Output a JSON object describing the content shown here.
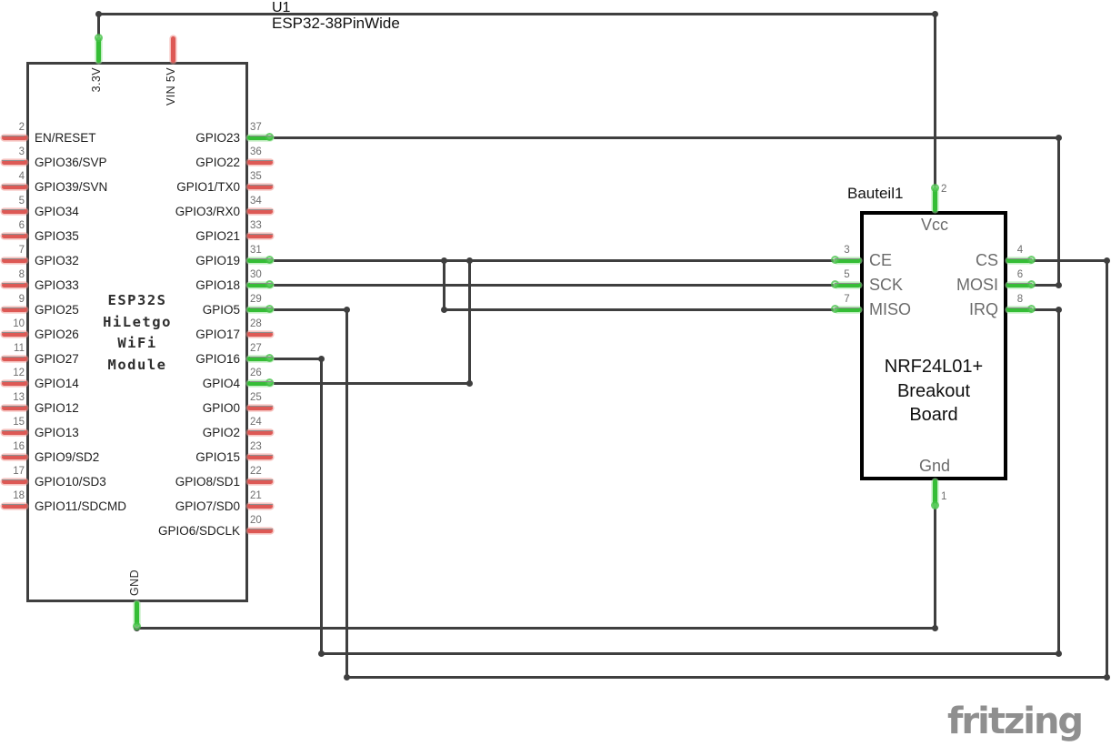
{
  "esp32": {
    "ref": "U1",
    "part": "ESP32-38PinWide",
    "center_lines": [
      "ESP32S",
      "HiLetgo",
      "WiFi",
      "Module"
    ],
    "top_pins": [
      {
        "label": "3.3V",
        "color": "green"
      },
      {
        "label": "VIN 5V",
        "color": "red"
      }
    ],
    "bottom_pins": [
      {
        "label": "GND",
        "color": "green"
      }
    ],
    "left_pins": [
      {
        "num": "2",
        "label": "EN/RESET",
        "color": "red"
      },
      {
        "num": "3",
        "label": "GPIO36/SVP",
        "color": "red"
      },
      {
        "num": "4",
        "label": "GPIO39/SVN",
        "color": "red"
      },
      {
        "num": "5",
        "label": "GPIO34",
        "color": "red"
      },
      {
        "num": "6",
        "label": "GPIO35",
        "color": "red"
      },
      {
        "num": "7",
        "label": "GPIO32",
        "color": "red"
      },
      {
        "num": "8",
        "label": "GPIO33",
        "color": "red"
      },
      {
        "num": "9",
        "label": "GPIO25",
        "color": "red"
      },
      {
        "num": "10",
        "label": "GPIO26",
        "color": "red"
      },
      {
        "num": "11",
        "label": "GPIO27",
        "color": "red"
      },
      {
        "num": "12",
        "label": "GPIO14",
        "color": "red"
      },
      {
        "num": "13",
        "label": "GPIO12",
        "color": "red"
      },
      {
        "num": "15",
        "label": "GPIO13",
        "color": "red"
      },
      {
        "num": "16",
        "label": "GPIO9/SD2",
        "color": "red"
      },
      {
        "num": "17",
        "label": "GPIO10/SD3",
        "color": "red"
      },
      {
        "num": "18",
        "label": "GPIO11/SDCMD",
        "color": "red"
      }
    ],
    "right_pins": [
      {
        "num": "37",
        "label": "GPIO23",
        "color": "green"
      },
      {
        "num": "36",
        "label": "GPIO22",
        "color": "red"
      },
      {
        "num": "35",
        "label": "GPIO1/TX0",
        "color": "red"
      },
      {
        "num": "34",
        "label": "GPIO3/RX0",
        "color": "red"
      },
      {
        "num": "33",
        "label": "GPIO21",
        "color": "red"
      },
      {
        "num": "31",
        "label": "GPIO19",
        "color": "green"
      },
      {
        "num": "30",
        "label": "GPIO18",
        "color": "green"
      },
      {
        "num": "29",
        "label": "GPIO5",
        "color": "green"
      },
      {
        "num": "28",
        "label": "GPIO17",
        "color": "red"
      },
      {
        "num": "27",
        "label": "GPIO16",
        "color": "green"
      },
      {
        "num": "26",
        "label": "GPIO4",
        "color": "green"
      },
      {
        "num": "25",
        "label": "GPIO0",
        "color": "red"
      },
      {
        "num": "24",
        "label": "GPIO2",
        "color": "red"
      },
      {
        "num": "23",
        "label": "GPIO15",
        "color": "red"
      },
      {
        "num": "22",
        "label": "GPIO8/SD1",
        "color": "red"
      },
      {
        "num": "21",
        "label": "GPIO7/SD0",
        "color": "red"
      },
      {
        "num": "20",
        "label": "GPIO6/SDCLK",
        "color": "red"
      }
    ]
  },
  "nrf": {
    "ref": "Bauteil1",
    "center_lines": [
      "NRF24L01+",
      "Breakout",
      "Board"
    ],
    "top_pin": {
      "num": "2",
      "label": "Vcc"
    },
    "bottom_pin": {
      "num": "1",
      "label": "Gnd"
    },
    "left_pins": [
      {
        "num": "3",
        "label": "CE"
      },
      {
        "num": "5",
        "label": "SCK"
      },
      {
        "num": "7",
        "label": "MISO"
      }
    ],
    "right_pins": [
      {
        "num": "4",
        "label": "CS"
      },
      {
        "num": "6",
        "label": "MOSI"
      },
      {
        "num": "8",
        "label": "IRQ"
      }
    ]
  },
  "watermark": "fritzing",
  "colors": {
    "wire": "#3f3f3f",
    "pin_red": "#dd5955",
    "pin_green": "#35bd36",
    "watermark": "#8f8f8f"
  }
}
